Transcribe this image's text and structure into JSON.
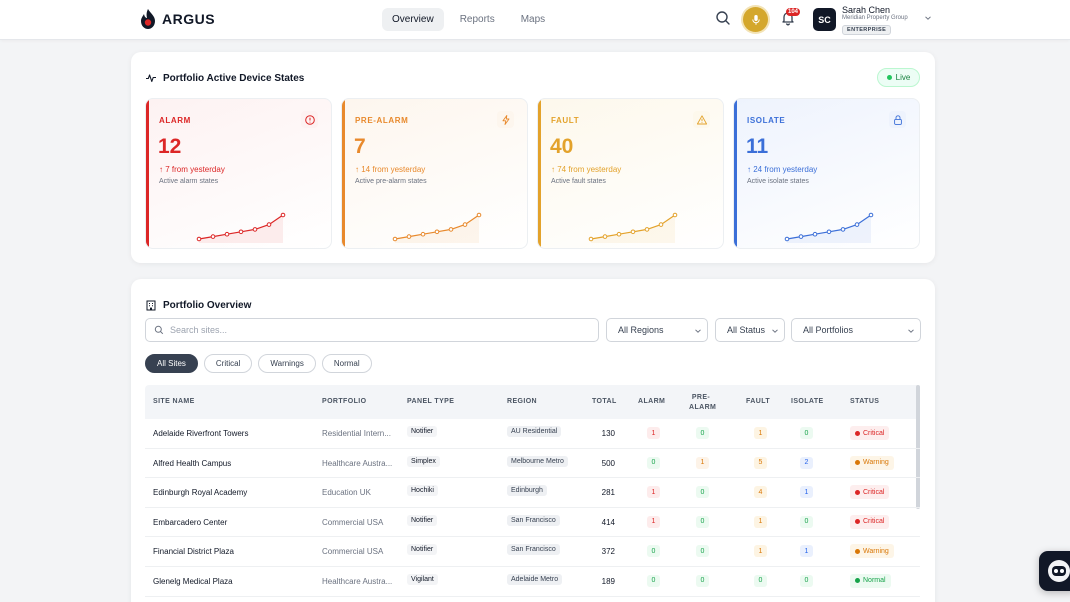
{
  "brand": {
    "name": "ARGUS"
  },
  "nav": {
    "items": [
      "Overview",
      "Reports",
      "Maps"
    ],
    "active": "Overview"
  },
  "notifications": {
    "count": "104"
  },
  "user": {
    "initials": "SC",
    "name": "Sarah Chen",
    "org": "Meridian Property Group",
    "tier": "ENTERPRISE"
  },
  "device_states": {
    "title": "Portfolio Active Device States",
    "live_label": "Live",
    "cards": [
      {
        "label": "ALARM",
        "value": "12",
        "delta": "7 from yesterday",
        "desc": "Active alarm states",
        "color": "#dc2626",
        "icon": "alert-circle-icon",
        "trend": [
          2,
          3,
          4,
          5,
          6,
          8,
          12
        ]
      },
      {
        "label": "PRE-ALARM",
        "value": "7",
        "delta": "14 from yesterday",
        "desc": "Active pre-alarm states",
        "color": "#e8892c",
        "icon": "lightning-icon",
        "trend": [
          2,
          3,
          4,
          5,
          6,
          8,
          12
        ]
      },
      {
        "label": "FAULT",
        "value": "40",
        "delta": "74 from yesterday",
        "desc": "Active fault states",
        "color": "#e3a22b",
        "icon": "warning-icon",
        "trend": [
          2,
          3,
          4,
          5,
          6,
          8,
          12
        ]
      },
      {
        "label": "ISOLATE",
        "value": "11",
        "delta": "24 from yesterday",
        "desc": "Active isolate states",
        "color": "#3b6fd8",
        "icon": "lock-icon",
        "trend": [
          2,
          3,
          4,
          5,
          6,
          8,
          12
        ]
      }
    ]
  },
  "overview": {
    "title": "Portfolio Overview",
    "search_placeholder": "Search sites...",
    "filters": {
      "region": "All Regions",
      "status": "All Status",
      "portfolio": "All Portfolios"
    },
    "chips": [
      "All Sites",
      "Critical",
      "Warnings",
      "Normal"
    ],
    "active_chip": "All Sites",
    "columns": {
      "site": "SITE NAME",
      "portfolio": "PORTFOLIO",
      "panel": "PANEL TYPE",
      "region": "REGION",
      "total": "TOTAL",
      "alarm": "ALARM",
      "prealarm_1": "PRE-",
      "prealarm_2": "ALARM",
      "fault": "FAULT",
      "isolate": "ISOLATE",
      "status": "STATUS"
    },
    "rows": [
      {
        "site": "Adelaide Riverfront Towers",
        "portfolio": "Residential Intern...",
        "panel": "Notifier",
        "region": "AU Residential",
        "total": "130",
        "alarm": "1",
        "prealarm": "0",
        "fault": "1",
        "isolate": "0",
        "status": "Critical"
      },
      {
        "site": "Alfred Health Campus",
        "portfolio": "Healthcare Austra...",
        "panel": "Simplex",
        "region": "Melbourne Metro",
        "total": "500",
        "alarm": "0",
        "prealarm": "1",
        "fault": "5",
        "isolate": "2",
        "status": "Warning"
      },
      {
        "site": "Edinburgh Royal Academy",
        "portfolio": "Education UK",
        "panel": "Hochiki",
        "region": "Edinburgh",
        "total": "281",
        "alarm": "1",
        "prealarm": "0",
        "fault": "4",
        "isolate": "1",
        "status": "Critical"
      },
      {
        "site": "Embarcadero Center",
        "portfolio": "Commercial USA",
        "panel": "Notifier",
        "region": "San Francisco",
        "total": "414",
        "alarm": "1",
        "prealarm": "0",
        "fault": "1",
        "isolate": "0",
        "status": "Critical"
      },
      {
        "site": "Financial District Plaza",
        "portfolio": "Commercial USA",
        "panel": "Notifier",
        "region": "San Francisco",
        "total": "372",
        "alarm": "0",
        "prealarm": "0",
        "fault": "1",
        "isolate": "1",
        "status": "Warning"
      },
      {
        "site": "Glenelg Medical Plaza",
        "portfolio": "Healthcare Austra...",
        "panel": "Vigilant",
        "region": "Adelaide Metro",
        "total": "189",
        "alarm": "0",
        "prealarm": "0",
        "fault": "0",
        "isolate": "0",
        "status": "Normal"
      }
    ]
  }
}
